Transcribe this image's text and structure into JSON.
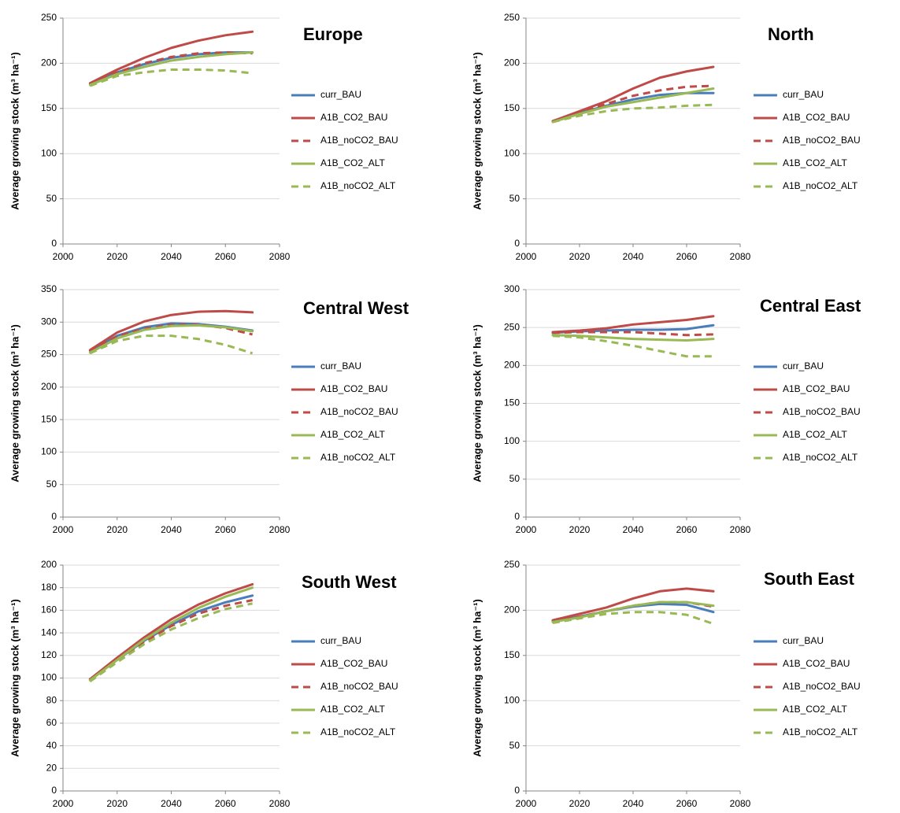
{
  "chart_data": [
    {
      "type": "line",
      "title": "Europe",
      "y_label": "Average growing stock (m³ ha⁻¹)",
      "x": [
        2010,
        2020,
        2030,
        2040,
        2050,
        2060,
        2070
      ],
      "xlim": [
        2000,
        2080
      ],
      "xticks": [
        2000,
        2020,
        2040,
        2060,
        2080
      ],
      "ylim": [
        0,
        250
      ],
      "yticks": [
        0,
        50,
        100,
        150,
        200,
        250
      ],
      "grid": true,
      "series": [
        {
          "name": "curr_BAU",
          "color": "#4a7ebb",
          "dashed": false,
          "values": [
            177,
            190,
            199,
            206,
            210,
            212,
            212
          ]
        },
        {
          "name": "A1B_CO2_BAU",
          "color": "#be4b48",
          "dashed": false,
          "values": [
            178,
            193,
            206,
            217,
            225,
            231,
            235
          ]
        },
        {
          "name": "A1B_noCO2_BAU",
          "color": "#be4b48",
          "dashed": true,
          "values": [
            177,
            190,
            200,
            207,
            211,
            212,
            211
          ]
        },
        {
          "name": "A1B_CO2_ALT",
          "color": "#98b954",
          "dashed": false,
          "values": [
            176,
            188,
            196,
            203,
            207,
            210,
            212
          ]
        },
        {
          "name": "A1B_noCO2_ALT",
          "color": "#98b954",
          "dashed": true,
          "values": [
            175,
            186,
            190,
            193,
            193,
            192,
            189
          ]
        }
      ]
    },
    {
      "type": "line",
      "title": "North",
      "y_label": "Average growing stock (m³ ha⁻¹)",
      "x": [
        2010,
        2020,
        2030,
        2040,
        2050,
        2060,
        2070
      ],
      "xlim": [
        2000,
        2080
      ],
      "xticks": [
        2000,
        2020,
        2040,
        2060,
        2080
      ],
      "ylim": [
        0,
        250
      ],
      "yticks": [
        0,
        50,
        100,
        150,
        200,
        250
      ],
      "grid": true,
      "series": [
        {
          "name": "curr_BAU",
          "color": "#4a7ebb",
          "dashed": false,
          "values": [
            136,
            145,
            153,
            160,
            165,
            167,
            167
          ]
        },
        {
          "name": "A1B_CO2_BAU",
          "color": "#be4b48",
          "dashed": false,
          "values": [
            136,
            147,
            158,
            172,
            184,
            191,
            196
          ]
        },
        {
          "name": "A1B_noCO2_BAU",
          "color": "#be4b48",
          "dashed": true,
          "values": [
            136,
            146,
            155,
            164,
            170,
            174,
            175
          ]
        },
        {
          "name": "A1B_CO2_ALT",
          "color": "#98b954",
          "dashed": false,
          "values": [
            135,
            144,
            152,
            157,
            162,
            167,
            172
          ]
        },
        {
          "name": "A1B_noCO2_ALT",
          "color": "#98b954",
          "dashed": true,
          "values": [
            135,
            142,
            147,
            150,
            151,
            153,
            154
          ]
        }
      ]
    },
    {
      "type": "line",
      "title": "Central West",
      "y_label": "Average growing stock (m³ ha⁻¹)",
      "x": [
        2010,
        2020,
        2030,
        2040,
        2050,
        2060,
        2070
      ],
      "xlim": [
        2000,
        2080
      ],
      "xticks": [
        2000,
        2020,
        2040,
        2060,
        2080
      ],
      "ylim": [
        0,
        350
      ],
      "yticks": [
        0,
        50,
        100,
        150,
        200,
        250,
        300,
        350
      ],
      "grid": true,
      "series": [
        {
          "name": "curr_BAU",
          "color": "#4a7ebb",
          "dashed": false,
          "values": [
            256,
            279,
            292,
            298,
            297,
            293,
            287
          ]
        },
        {
          "name": "A1B_CO2_BAU",
          "color": "#be4b48",
          "dashed": false,
          "values": [
            257,
            284,
            301,
            311,
            316,
            317,
            315
          ]
        },
        {
          "name": "A1B_noCO2_BAU",
          "color": "#be4b48",
          "dashed": true,
          "values": [
            255,
            278,
            290,
            296,
            296,
            291,
            281
          ]
        },
        {
          "name": "A1B_CO2_ALT",
          "color": "#98b954",
          "dashed": false,
          "values": [
            253,
            275,
            288,
            294,
            295,
            292,
            286
          ]
        },
        {
          "name": "A1B_noCO2_ALT",
          "color": "#98b954",
          "dashed": true,
          "values": [
            252,
            271,
            279,
            279,
            274,
            265,
            252
          ]
        }
      ]
    },
    {
      "type": "line",
      "title": "Central East",
      "y_label": "Average growing stock (m³ ha⁻¹)",
      "x": [
        2010,
        2020,
        2030,
        2040,
        2050,
        2060,
        2070
      ],
      "xlim": [
        2000,
        2080
      ],
      "xticks": [
        2000,
        2020,
        2040,
        2060,
        2080
      ],
      "ylim": [
        0,
        300
      ],
      "yticks": [
        0,
        50,
        100,
        150,
        200,
        250,
        300
      ],
      "grid": true,
      "series": [
        {
          "name": "curr_BAU",
          "color": "#4a7ebb",
          "dashed": false,
          "values": [
            243,
            245,
            246,
            247,
            247,
            248,
            253
          ]
        },
        {
          "name": "A1B_CO2_BAU",
          "color": "#be4b48",
          "dashed": false,
          "values": [
            244,
            246,
            249,
            254,
            257,
            260,
            265
          ]
        },
        {
          "name": "A1B_noCO2_BAU",
          "color": "#be4b48",
          "dashed": true,
          "values": [
            243,
            244,
            244,
            244,
            242,
            240,
            241
          ]
        },
        {
          "name": "A1B_CO2_ALT",
          "color": "#98b954",
          "dashed": false,
          "values": [
            240,
            239,
            237,
            235,
            234,
            233,
            235
          ]
        },
        {
          "name": "A1B_noCO2_ALT",
          "color": "#98b954",
          "dashed": true,
          "values": [
            239,
            237,
            232,
            226,
            219,
            212,
            212
          ]
        }
      ]
    },
    {
      "type": "line",
      "title": "South West",
      "y_label": "Average growing stock (m³ ha⁻¹)",
      "x": [
        2010,
        2020,
        2030,
        2040,
        2050,
        2060,
        2070
      ],
      "xlim": [
        2000,
        2080
      ],
      "xticks": [
        2000,
        2020,
        2040,
        2060,
        2080
      ],
      "ylim": [
        0,
        200
      ],
      "yticks": [
        0,
        20,
        40,
        60,
        80,
        100,
        120,
        140,
        160,
        180,
        200
      ],
      "grid": true,
      "series": [
        {
          "name": "curr_BAU",
          "color": "#4a7ebb",
          "dashed": false,
          "values": [
            99,
            116,
            133,
            147,
            159,
            167,
            173
          ]
        },
        {
          "name": "A1B_CO2_BAU",
          "color": "#be4b48",
          "dashed": false,
          "values": [
            99,
            118,
            136,
            152,
            165,
            175,
            183
          ]
        },
        {
          "name": "A1B_noCO2_BAU",
          "color": "#be4b48",
          "dashed": true,
          "values": [
            98,
            116,
            132,
            146,
            157,
            164,
            169
          ]
        },
        {
          "name": "A1B_CO2_ALT",
          "color": "#98b954",
          "dashed": false,
          "values": [
            98,
            116,
            134,
            149,
            162,
            172,
            180
          ]
        },
        {
          "name": "A1B_noCO2_ALT",
          "color": "#98b954",
          "dashed": true,
          "values": [
            97,
            114,
            130,
            143,
            153,
            161,
            166
          ]
        }
      ]
    },
    {
      "type": "line",
      "title": "South East",
      "y_label": "Average growing stock (m³ ha⁻¹)",
      "x": [
        2010,
        2020,
        2030,
        2040,
        2050,
        2060,
        2070
      ],
      "xlim": [
        2000,
        2080
      ],
      "xticks": [
        2000,
        2020,
        2040,
        2060,
        2080
      ],
      "ylim": [
        0,
        250
      ],
      "yticks": [
        0,
        50,
        100,
        150,
        200,
        250
      ],
      "grid": true,
      "series": [
        {
          "name": "curr_BAU",
          "color": "#4a7ebb",
          "dashed": false,
          "values": [
            188,
            193,
            199,
            204,
            207,
            206,
            198
          ]
        },
        {
          "name": "A1B_CO2_BAU",
          "color": "#be4b48",
          "dashed": false,
          "values": [
            189,
            196,
            203,
            213,
            221,
            224,
            221
          ]
        },
        {
          "name": "A1B_noCO2_BAU",
          "color": "#be4b48",
          "dashed": true,
          "values": [
            188,
            193,
            199,
            205,
            209,
            209,
            204
          ]
        },
        {
          "name": "A1B_CO2_ALT",
          "color": "#98b954",
          "dashed": false,
          "values": [
            187,
            192,
            199,
            205,
            209,
            209,
            205
          ]
        },
        {
          "name": "A1B_noCO2_ALT",
          "color": "#98b954",
          "dashed": true,
          "values": [
            186,
            191,
            196,
            198,
            198,
            195,
            185
          ]
        }
      ]
    }
  ]
}
